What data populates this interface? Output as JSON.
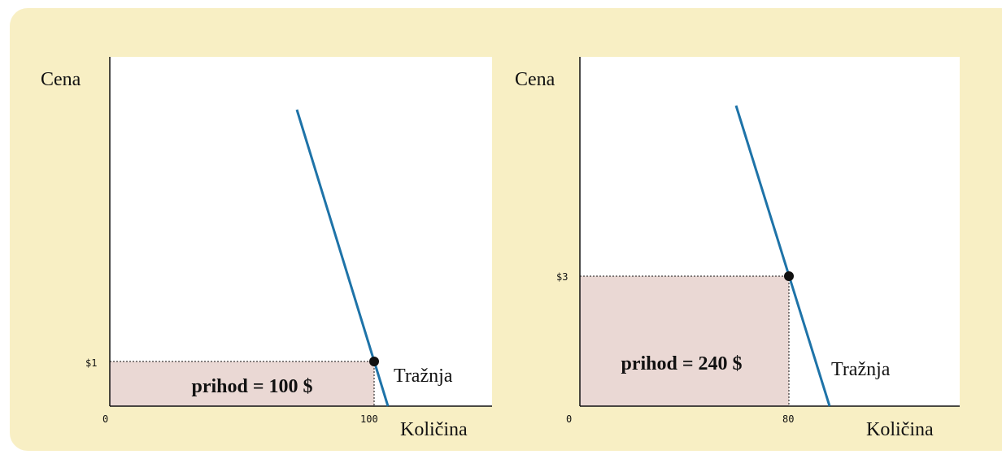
{
  "panels": [
    {
      "y_label": "Cena",
      "x_label": "Količina",
      "origin": "0",
      "price": "$1",
      "quantity": "100",
      "revenue": "prihod = 100 $",
      "curve": "Tražnja"
    },
    {
      "y_label": "Cena",
      "x_label": "Količina",
      "origin": "0",
      "price": "$3",
      "quantity": "80",
      "revenue": "prihod = 240 $",
      "curve": "Tražnja"
    }
  ]
}
